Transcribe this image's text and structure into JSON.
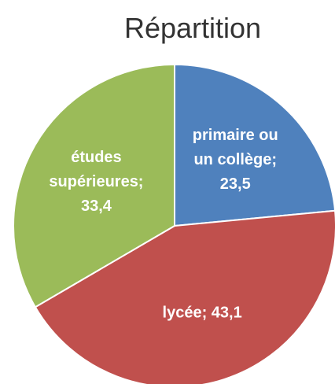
{
  "chart_data": {
    "type": "pie",
    "title": "Répartition",
    "values": [
      23.5,
      43.1,
      33.4
    ],
    "value_labels": [
      "primaire ou un collège; 23,5",
      "lycée; 43,1",
      "études supérieures; 33,4"
    ],
    "colors": [
      "#4f81bd",
      "#c0504d",
      "#9bbb59"
    ]
  }
}
